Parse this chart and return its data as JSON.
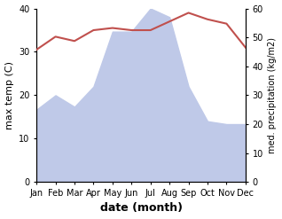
{
  "months": [
    "Jan",
    "Feb",
    "Mar",
    "Apr",
    "May",
    "Jun",
    "Jul",
    "Aug",
    "Sep",
    "Oct",
    "Nov",
    "Dec"
  ],
  "precipitation": [
    25,
    30,
    26,
    33,
    52,
    52,
    60,
    57,
    33,
    21,
    20,
    20
  ],
  "temperature": [
    30.5,
    33.5,
    32.5,
    35,
    35.5,
    35,
    35,
    37,
    39,
    37.5,
    36.5,
    31
  ],
  "temp_color": "#c0504d",
  "precip_fill_color": "#bfc9e8",
  "ylim_left": [
    0,
    40
  ],
  "ylim_right": [
    0,
    60
  ],
  "ylabel_left": "max temp (C)",
  "ylabel_right": "med. precipitation (kg/m2)",
  "xlabel": "date (month)",
  "yticks_left": [
    0,
    10,
    20,
    30,
    40
  ],
  "yticks_right": [
    0,
    10,
    20,
    30,
    40,
    50,
    60
  ]
}
